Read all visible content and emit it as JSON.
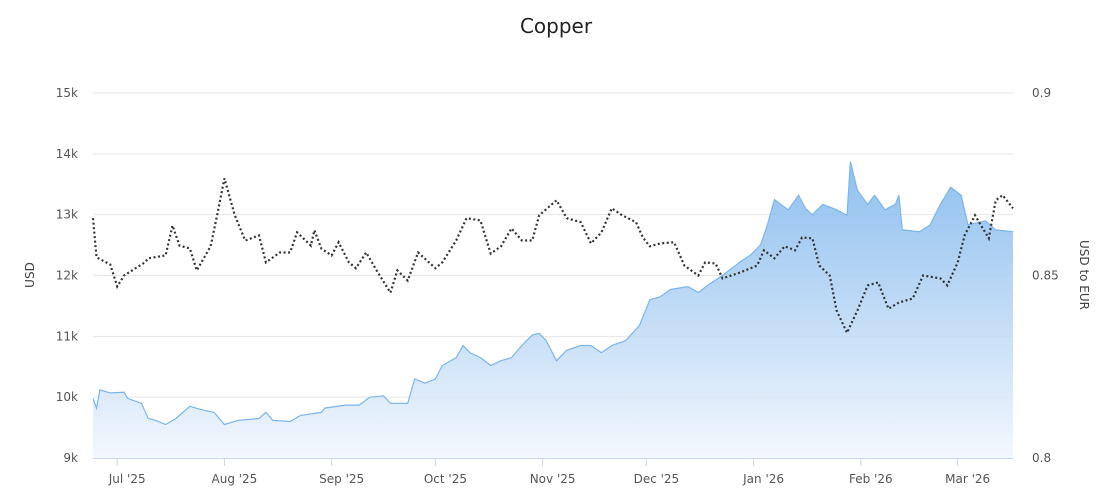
{
  "chart_data": {
    "type": "area+line",
    "title": "Copper",
    "ylabel_left": "USD",
    "ylabel_right": "USD to EUR",
    "ylim_left": [
      9000,
      15000
    ],
    "ylim_right": [
      0.8,
      0.9
    ],
    "xlim": [
      "2025-06-24",
      "2026-03-17"
    ],
    "grid": true,
    "x_ticks": [
      {
        "date": "2025-07-01",
        "label": "Jul '25"
      },
      {
        "date": "2025-08-01",
        "label": "Aug '25"
      },
      {
        "date": "2025-09-01",
        "label": "Sep '25"
      },
      {
        "date": "2025-10-01",
        "label": "Oct '25"
      },
      {
        "date": "2025-11-01",
        "label": "Nov '25"
      },
      {
        "date": "2025-12-01",
        "label": "Dec '25"
      },
      {
        "date": "2026-01-01",
        "label": "Jan '26"
      },
      {
        "date": "2026-02-01",
        "label": "Feb '26"
      },
      {
        "date": "2026-03-01",
        "label": "Mar '26"
      }
    ],
    "y_ticks_left": [
      {
        "value": 9000,
        "label": "9k"
      },
      {
        "value": 10000,
        "label": "10k"
      },
      {
        "value": 11000,
        "label": "11k"
      },
      {
        "value": 12000,
        "label": "12k"
      },
      {
        "value": 13000,
        "label": "13k"
      },
      {
        "value": 14000,
        "label": "14k"
      },
      {
        "value": 15000,
        "label": "15k"
      }
    ],
    "y_ticks_right": [
      {
        "value": 0.8,
        "label": "0.8"
      },
      {
        "value": 0.85,
        "label": "0.85"
      },
      {
        "value": 0.9,
        "label": "0.9"
      }
    ],
    "colors": {
      "area_top": "#7cb5ec",
      "area_bottom": "#f2f7fd",
      "line": "#333333",
      "grid": "#e6e6e6"
    },
    "series": [
      {
        "type": "area",
        "axis": "left",
        "points": [
          [
            "2025-06-24",
            9980
          ],
          [
            "2025-06-25",
            9820
          ],
          [
            "2025-06-26",
            10120
          ],
          [
            "2025-06-29",
            10070
          ],
          [
            "2025-07-03",
            10080
          ],
          [
            "2025-07-04",
            9980
          ],
          [
            "2025-07-08",
            9900
          ],
          [
            "2025-07-10",
            9650
          ],
          [
            "2025-07-12",
            9620
          ],
          [
            "2025-07-15",
            9550
          ],
          [
            "2025-07-18",
            9650
          ],
          [
            "2025-07-22",
            9850
          ],
          [
            "2025-07-25",
            9800
          ],
          [
            "2025-07-29",
            9750
          ],
          [
            "2025-08-01",
            9550
          ],
          [
            "2025-08-05",
            9620
          ],
          [
            "2025-08-11",
            9650
          ],
          [
            "2025-08-13",
            9750
          ],
          [
            "2025-08-15",
            9620
          ],
          [
            "2025-08-20",
            9600
          ],
          [
            "2025-08-23",
            9700
          ],
          [
            "2025-08-29",
            9750
          ],
          [
            "2025-08-30",
            9820
          ],
          [
            "2025-09-05",
            9870
          ],
          [
            "2025-09-09",
            9870
          ],
          [
            "2025-09-12",
            10000
          ],
          [
            "2025-09-16",
            10020
          ],
          [
            "2025-09-18",
            9900
          ],
          [
            "2025-09-23",
            9900
          ],
          [
            "2025-09-25",
            10300
          ],
          [
            "2025-09-28",
            10230
          ],
          [
            "2025-10-01",
            10300
          ],
          [
            "2025-10-03",
            10520
          ],
          [
            "2025-10-07",
            10650
          ],
          [
            "2025-10-09",
            10850
          ],
          [
            "2025-10-11",
            10730
          ],
          [
            "2025-10-14",
            10650
          ],
          [
            "2025-10-17",
            10520
          ],
          [
            "2025-10-20",
            10600
          ],
          [
            "2025-10-23",
            10650
          ],
          [
            "2025-10-26",
            10850
          ],
          [
            "2025-10-29",
            11020
          ],
          [
            "2025-10-31",
            11050
          ],
          [
            "2025-11-02",
            10930
          ],
          [
            "2025-11-05",
            10600
          ],
          [
            "2025-11-08",
            10770
          ],
          [
            "2025-11-12",
            10850
          ],
          [
            "2025-11-15",
            10850
          ],
          [
            "2025-11-18",
            10730
          ],
          [
            "2025-11-21",
            10850
          ],
          [
            "2025-11-25",
            10930
          ],
          [
            "2025-11-29",
            11180
          ],
          [
            "2025-12-02",
            11600
          ],
          [
            "2025-12-05",
            11650
          ],
          [
            "2025-12-08",
            11770
          ],
          [
            "2025-12-13",
            11820
          ],
          [
            "2025-12-16",
            11720
          ],
          [
            "2025-12-19",
            11850
          ],
          [
            "2025-12-23",
            12000
          ],
          [
            "2025-12-28",
            12220
          ],
          [
            "2025-12-31",
            12330
          ],
          [
            "2026-01-03",
            12500
          ],
          [
            "2026-01-05",
            12830
          ],
          [
            "2026-01-07",
            13250
          ],
          [
            "2026-01-11",
            13080
          ],
          [
            "2026-01-14",
            13320
          ],
          [
            "2026-01-16",
            13100
          ],
          [
            "2026-01-18",
            13000
          ],
          [
            "2026-01-21",
            13170
          ],
          [
            "2026-01-25",
            13080
          ],
          [
            "2026-01-28",
            12990
          ],
          [
            "2026-01-29",
            13870
          ],
          [
            "2026-01-31",
            13400
          ],
          [
            "2026-02-03",
            13170
          ],
          [
            "2026-02-05",
            13320
          ],
          [
            "2026-02-08",
            13080
          ],
          [
            "2026-02-11",
            13170
          ],
          [
            "2026-02-12",
            13320
          ],
          [
            "2026-02-13",
            12750
          ],
          [
            "2026-02-18",
            12720
          ],
          [
            "2026-02-21",
            12830
          ],
          [
            "2026-02-24",
            13170
          ],
          [
            "2026-02-27",
            13450
          ],
          [
            "2026-03-02",
            13320
          ],
          [
            "2026-03-04",
            12830
          ],
          [
            "2026-03-09",
            12900
          ],
          [
            "2026-03-12",
            12750
          ],
          [
            "2026-03-17",
            12720
          ]
        ]
      },
      {
        "type": "line",
        "axis": "right",
        "dash": "dotted",
        "points": [
          [
            "2025-06-24",
            0.8657
          ],
          [
            "2025-06-25",
            0.855
          ],
          [
            "2025-06-29",
            0.853
          ],
          [
            "2025-07-01",
            0.847
          ],
          [
            "2025-07-03",
            0.85
          ],
          [
            "2025-07-09",
            0.8536
          ],
          [
            "2025-07-10",
            0.8547
          ],
          [
            "2025-07-15",
            0.8555
          ],
          [
            "2025-07-17",
            0.8637
          ],
          [
            "2025-07-19",
            0.8582
          ],
          [
            "2025-07-22",
            0.8574
          ],
          [
            "2025-07-24",
            0.8514
          ],
          [
            "2025-07-28",
            0.858
          ],
          [
            "2025-07-30",
            0.867
          ],
          [
            "2025-08-01",
            0.8766
          ],
          [
            "2025-08-04",
            0.8665
          ],
          [
            "2025-08-07",
            0.8596
          ],
          [
            "2025-08-11",
            0.861
          ],
          [
            "2025-08-13",
            0.8536
          ],
          [
            "2025-08-17",
            0.8563
          ],
          [
            "2025-08-20",
            0.8563
          ],
          [
            "2025-08-22",
            0.8618
          ],
          [
            "2025-08-26",
            0.8582
          ],
          [
            "2025-08-27",
            0.8624
          ],
          [
            "2025-08-29",
            0.8574
          ],
          [
            "2025-09-01",
            0.8555
          ],
          [
            "2025-09-03",
            0.8591
          ],
          [
            "2025-09-06",
            0.8536
          ],
          [
            "2025-09-08",
            0.852
          ],
          [
            "2025-09-11",
            0.8563
          ],
          [
            "2025-09-14",
            0.8514
          ],
          [
            "2025-09-18",
            0.8453
          ],
          [
            "2025-09-20",
            0.8514
          ],
          [
            "2025-09-23",
            0.8486
          ],
          [
            "2025-09-26",
            0.8563
          ],
          [
            "2025-10-01",
            0.852
          ],
          [
            "2025-10-03",
            0.8536
          ],
          [
            "2025-10-07",
            0.8596
          ],
          [
            "2025-10-10",
            0.8657
          ],
          [
            "2025-10-14",
            0.8651
          ],
          [
            "2025-10-17",
            0.856
          ],
          [
            "2025-10-20",
            0.858
          ],
          [
            "2025-10-23",
            0.8629
          ],
          [
            "2025-10-26",
            0.8596
          ],
          [
            "2025-10-29",
            0.8596
          ],
          [
            "2025-10-31",
            0.8665
          ],
          [
            "2025-11-05",
            0.8706
          ],
          [
            "2025-11-08",
            0.8657
          ],
          [
            "2025-11-12",
            0.8646
          ],
          [
            "2025-11-15",
            0.8588
          ],
          [
            "2025-11-18",
            0.8618
          ],
          [
            "2025-11-21",
            0.8684
          ],
          [
            "2025-11-24",
            0.8665
          ],
          [
            "2025-11-28",
            0.8646
          ],
          [
            "2025-11-30",
            0.8604
          ],
          [
            "2025-12-02",
            0.858
          ],
          [
            "2025-12-05",
            0.8588
          ],
          [
            "2025-12-09",
            0.8591
          ],
          [
            "2025-12-12",
            0.8527
          ],
          [
            "2025-12-16",
            0.85
          ],
          [
            "2025-12-18",
            0.8536
          ],
          [
            "2025-12-21",
            0.8533
          ],
          [
            "2025-12-23",
            0.8492
          ],
          [
            "2025-12-28",
            0.8508
          ],
          [
            "2026-01-02",
            0.8527
          ],
          [
            "2026-01-04",
            0.8569
          ],
          [
            "2026-01-07",
            0.8547
          ],
          [
            "2026-01-10",
            0.858
          ],
          [
            "2026-01-13",
            0.8569
          ],
          [
            "2026-01-15",
            0.8604
          ],
          [
            "2026-01-18",
            0.8602
          ],
          [
            "2026-01-20",
            0.8527
          ],
          [
            "2026-01-23",
            0.85
          ],
          [
            "2026-01-25",
            0.8404
          ],
          [
            "2026-01-28",
            0.8343
          ],
          [
            "2026-01-31",
            0.8404
          ],
          [
            "2026-02-03",
            0.8473
          ],
          [
            "2026-02-06",
            0.8481
          ],
          [
            "2026-02-09",
            0.8409
          ],
          [
            "2026-02-12",
            0.8426
          ],
          [
            "2026-02-16",
            0.8437
          ],
          [
            "2026-02-19",
            0.85
          ],
          [
            "2026-02-24",
            0.8492
          ],
          [
            "2026-02-26",
            0.8473
          ],
          [
            "2026-03-01",
            0.8536
          ],
          [
            "2026-03-03",
            0.861
          ],
          [
            "2026-03-06",
            0.8665
          ],
          [
            "2026-03-10",
            0.8602
          ],
          [
            "2026-03-12",
            0.8706
          ],
          [
            "2026-03-14",
            0.872
          ],
          [
            "2026-03-17",
            0.8684
          ]
        ]
      }
    ]
  }
}
